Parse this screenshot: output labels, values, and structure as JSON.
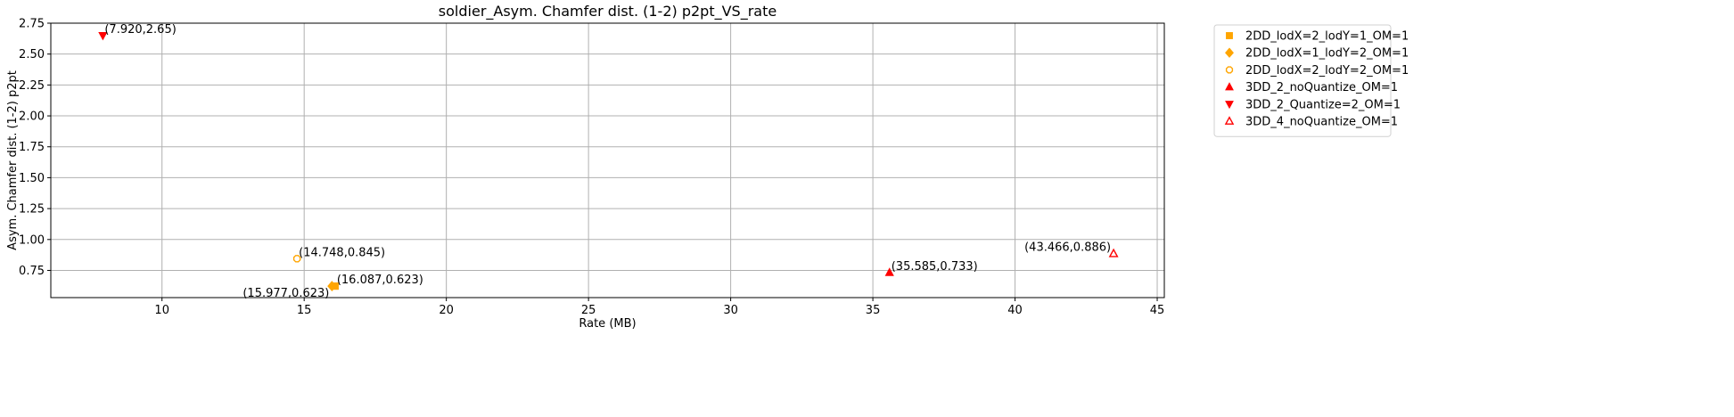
{
  "chart_data": {
    "type": "scatter",
    "title": "soldier_Asym. Chamfer dist. (1-2) p2pt_VS_rate",
    "xlabel": "Rate (MB)",
    "ylabel": "Asym. Chamfer dist. (1-2) p2pt",
    "xlim": [
      6.09,
      45.25
    ],
    "ylim": [
      0.53,
      2.75
    ],
    "xticks": [
      10,
      15,
      20,
      25,
      30,
      35,
      40,
      45
    ],
    "yticks": [
      0.75,
      1.0,
      1.25,
      1.5,
      1.75,
      2.0,
      2.25,
      2.5,
      2.75
    ],
    "ytick_labels": [
      "0.75",
      "1.00",
      "1.25",
      "1.50",
      "1.75",
      "2.00",
      "2.25",
      "2.50",
      "2.75"
    ],
    "grid": true,
    "legend_position": "outside-top-right",
    "series": [
      {
        "name": "2DD_lodX=2_lodY=1_OM=1",
        "marker": "square",
        "color": "#ffa500",
        "filled": true,
        "points": [
          {
            "x": 16.087,
            "y": 0.623,
            "label": "(16.087,0.623)",
            "label_pos": "upper-right"
          }
        ]
      },
      {
        "name": "2DD_lodX=1_lodY=2_OM=1",
        "marker": "diamond",
        "color": "#ffa500",
        "filled": true,
        "points": [
          {
            "x": 15.977,
            "y": 0.623,
            "label": "(15.977,0.623)",
            "label_pos": "lower-left"
          }
        ]
      },
      {
        "name": "2DD_lodX=2_lodY=2_OM=1",
        "marker": "octagon",
        "color": "#ffa500",
        "filled": false,
        "points": [
          {
            "x": 14.748,
            "y": 0.845,
            "label": "(14.748,0.845)",
            "label_pos": "upper-right"
          }
        ]
      },
      {
        "name": "3DD_2_noQuantize_OM=1",
        "marker": "triangle-up",
        "color": "#ff0000",
        "filled": true,
        "points": [
          {
            "x": 35.585,
            "y": 0.733,
            "label": "(35.585,0.733)",
            "label_pos": "upper-right"
          }
        ]
      },
      {
        "name": "3DD_2_Quantize=2_OM=1",
        "marker": "triangle-down",
        "color": "#ff0000",
        "filled": true,
        "points": [
          {
            "x": 7.92,
            "y": 2.65,
            "label": "(7.920,2.65)",
            "label_pos": "upper-right"
          }
        ]
      },
      {
        "name": "3DD_4_noQuantize_OM=1",
        "marker": "triangle-up",
        "color": "#ff0000",
        "filled": false,
        "points": [
          {
            "x": 43.466,
            "y": 0.886,
            "label": "(43.466,0.886)",
            "label_pos": "upper-left"
          }
        ]
      }
    ]
  }
}
